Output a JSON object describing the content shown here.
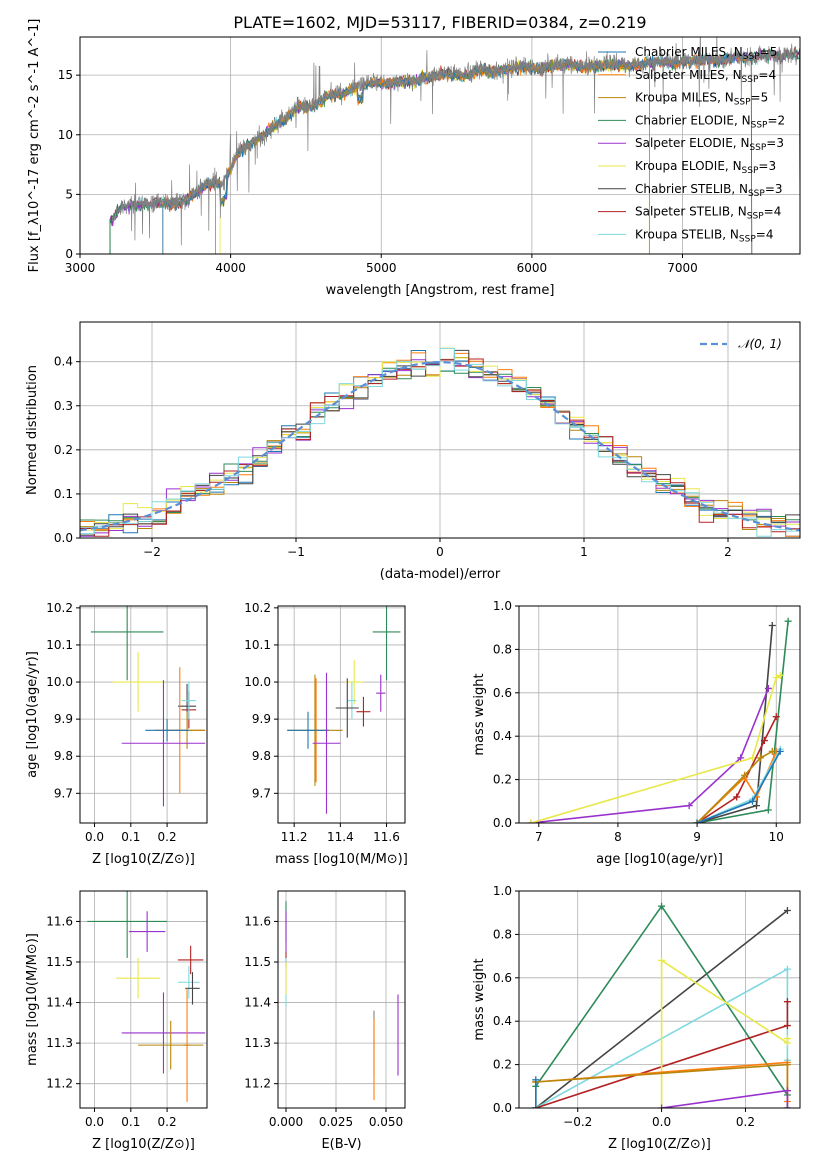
{
  "title": "PLATE=1602, MJD=53117, FIBERID=0384, z=0.219",
  "models": [
    {
      "name": "Chabrier MILES",
      "nssp": "5",
      "color": "#1f77b4"
    },
    {
      "name": "Salpeter MILES",
      "nssp": "4",
      "color": "#ff7f0e"
    },
    {
      "name": "Kroupa MILES",
      "nssp": "5",
      "color": "#b8860b"
    },
    {
      "name": "Chabrier ELODIE",
      "nssp": "2",
      "color": "#2e8b57"
    },
    {
      "name": "Salpeter ELODIE",
      "nssp": "3",
      "color": "#9932cc"
    },
    {
      "name": "Kroupa ELODIE",
      "nssp": "3",
      "color": "#e8e84a"
    },
    {
      "name": "Chabrier STELIB",
      "nssp": "3",
      "color": "#444444"
    },
    {
      "name": "Salpeter STELIB",
      "nssp": "4",
      "color": "#b22222"
    },
    {
      "name": "Kroupa STELIB",
      "nssp": "4",
      "color": "#7fd8e0"
    }
  ],
  "legend_nssp_prefix": "N",
  "legend_nssp_sub": "SSP",
  "chart_data": [
    {
      "id": "spectrum",
      "type": "line",
      "xlabel": "wavelength [Angstrom, rest frame]",
      "ylabel": "Flux [f_λ10^-17 erg cm^-2 s^-1 A^-1]",
      "xlim": [
        3000,
        7780
      ],
      "ylim": [
        0,
        18.2
      ],
      "xticks": [
        3000,
        4000,
        5000,
        6000,
        7000
      ],
      "yticks": [
        0,
        5,
        10,
        15
      ],
      "data_color": "#808080",
      "data": {
        "x": [
          3215,
          3260,
          3350,
          3450,
          3550,
          3650,
          3750,
          3850,
          3950,
          4050,
          4150,
          4250,
          4350,
          4450,
          4550,
          4650,
          4750,
          4850,
          4950,
          5050,
          5150,
          5250,
          5350,
          5450,
          5550,
          5650,
          5750,
          5850,
          5950,
          6050,
          6150,
          6250,
          6350,
          6450,
          6550,
          6650,
          6750,
          6850,
          6950,
          7050,
          7150,
          7250,
          7350,
          7450,
          7550,
          7650,
          7760
        ],
        "y": [
          2.9,
          4.0,
          4.2,
          4.3,
          4.4,
          4.3,
          5.0,
          6.0,
          6.0,
          8.6,
          9.5,
          10.4,
          11.3,
          12.5,
          12.4,
          13.4,
          13.6,
          14.1,
          14.5,
          14.4,
          14.6,
          14.7,
          15.0,
          15.2,
          15.0,
          15.5,
          15.4,
          15.6,
          15.8,
          15.6,
          15.9,
          16.0,
          15.7,
          15.9,
          16.0,
          15.8,
          16.1,
          16.2,
          16.1,
          16.2,
          16.4,
          16.3,
          16.6,
          16.5,
          16.8,
          16.7,
          16.9
        ]
      },
      "model_start": [
        3550,
        3550,
        3900,
        3200,
        3200,
        3930,
        3200,
        3200,
        3200
      ],
      "model_end": [
        7460,
        7460,
        6780,
        7780,
        7780,
        6780,
        7780,
        7780,
        7780
      ]
    },
    {
      "id": "residuals",
      "type": "histogram",
      "xlabel": "(data-model)/error",
      "ylabel": "Normed distribution",
      "xlim": [
        -2.5,
        2.5
      ],
      "ylim": [
        0,
        0.49
      ],
      "xticks": [
        -2,
        -1,
        0,
        1,
        2
      ],
      "yticks": [
        0.0,
        0.1,
        0.2,
        0.3,
        0.4
      ],
      "bin_width": 0.1,
      "bins_start": -2.5,
      "reference": {
        "name": "𝒩(0, 1)",
        "mean": 0,
        "sigma": 1,
        "color": "#5b8fd6"
      }
    },
    {
      "id": "age_vs_Z",
      "type": "errorbar",
      "xlabel": "Z [log10(Z/Z⊙)]",
      "ylabel": "age  [log10(age/yr)]",
      "xlim": [
        -0.04,
        0.31
      ],
      "ylim": [
        9.62,
        10.205
      ],
      "xticks": [
        0.0,
        0.1,
        0.2
      ],
      "yticks": [
        9.7,
        9.8,
        9.9,
        10.0,
        10.1,
        10.2
      ],
      "points": [
        {
          "m": 3,
          "x": 0.09,
          "xe": 0.1,
          "y": 10.135,
          "ye": 0.13
        },
        {
          "m": 5,
          "x": 0.12,
          "xe": 0.07,
          "y": 10.0,
          "ye": 0.08
        },
        {
          "m": 6,
          "x": 0.255,
          "xe": 0.025,
          "y": 9.935,
          "ye": 0.06
        },
        {
          "m": 7,
          "x": 0.26,
          "xe": 0.02,
          "y": 9.925,
          "ye": 0.05
        },
        {
          "m": 8,
          "x": 0.26,
          "xe": 0.02,
          "y": 9.95,
          "ye": 0.05
        },
        {
          "m": 1,
          "x": 0.235,
          "xe": 0.07,
          "y": 9.87,
          "ye": 0.17
        },
        {
          "m": 2,
          "x": 0.255,
          "xe": 0.05,
          "y": 9.87,
          "ye": 0.05
        },
        {
          "m": 0,
          "x": 0.2,
          "xe": 0.06,
          "y": 9.87,
          "ye": 0.03
        },
        {
          "m": 4,
          "x": 0.19,
          "xe": 0.115,
          "y": 9.835,
          "ye": 0.17
        }
      ]
    },
    {
      "id": "age_vs_mass",
      "type": "errorbar",
      "xlabel": "mass [log10(M/M⊙)]",
      "ylabel": "",
      "xlim": [
        11.13,
        11.68
      ],
      "ylim": [
        9.62,
        10.205
      ],
      "xticks": [
        11.2,
        11.4,
        11.6
      ],
      "yticks": [
        9.7,
        9.8,
        9.9,
        10.0,
        10.1,
        10.2
      ],
      "points": [
        {
          "m": 3,
          "x": 11.6,
          "xe": 0.06,
          "y": 10.135,
          "ye": 0.13
        },
        {
          "m": 5,
          "x": 11.46,
          "xe": 0.04,
          "y": 10.0,
          "ye": 0.06
        },
        {
          "m": 4,
          "x": 11.575,
          "xe": 0.02,
          "y": 9.97,
          "ye": 0.05
        },
        {
          "m": 8,
          "x": 11.45,
          "xe": 0.02,
          "y": 9.95,
          "ye": 0.05
        },
        {
          "m": 6,
          "x": 11.43,
          "xe": 0.05,
          "y": 9.93,
          "ye": 0.08
        },
        {
          "m": 7,
          "x": 11.5,
          "xe": 0.03,
          "y": 9.92,
          "ye": 0.04
        },
        {
          "m": 1,
          "x": 11.295,
          "xe": 0.01,
          "y": 9.87,
          "ye": 0.14
        },
        {
          "m": 2,
          "x": 11.29,
          "xe": 0.12,
          "y": 9.87,
          "ye": 0.15
        },
        {
          "m": 0,
          "x": 11.26,
          "xe": 0.09,
          "y": 9.87,
          "ye": 0.05
        },
        {
          "m": 4,
          "x": 11.34,
          "xe": 0.06,
          "y": 9.835,
          "ye": 0.19
        }
      ]
    },
    {
      "id": "weight_vs_age",
      "type": "line",
      "xlabel": "age  [log10(age/yr)]",
      "ylabel": "mass weight",
      "xlim": [
        6.75,
        10.3
      ],
      "ylim": [
        0,
        1.0
      ],
      "xticks": [
        7,
        8,
        9,
        10
      ],
      "yticks": [
        0.0,
        0.2,
        0.4,
        0.6,
        0.8,
        1.0
      ],
      "series": [
        {
          "m": 3,
          "x": [
            9.0,
            9.9,
            10.15
          ],
          "y": [
            0.0,
            0.06,
            0.93
          ]
        },
        {
          "m": 6,
          "x": [
            9.0,
            9.75,
            9.95
          ],
          "y": [
            0.0,
            0.08,
            0.91
          ]
        },
        {
          "m": 4,
          "x": [
            6.9,
            8.9,
            9.55,
            9.9
          ],
          "y": [
            0.0,
            0.08,
            0.3,
            0.62
          ]
        },
        {
          "m": 5,
          "x": [
            6.9,
            9.7,
            10.0,
            10.05
          ],
          "y": [
            0.0,
            0.3,
            0.67,
            0.68
          ]
        },
        {
          "m": 7,
          "x": [
            9.0,
            9.5,
            9.85,
            10.0
          ],
          "y": [
            0.0,
            0.12,
            0.38,
            0.49
          ]
        },
        {
          "m": 1,
          "x": [
            9.0,
            9.6,
            9.75,
            10.0
          ],
          "y": [
            0.0,
            0.21,
            0.12,
            0.33
          ]
        },
        {
          "m": 2,
          "x": [
            9.0,
            9.6,
            9.8,
            9.95
          ],
          "y": [
            0.0,
            0.22,
            0.3,
            0.33
          ]
        },
        {
          "m": 8,
          "x": [
            9.0,
            9.7,
            10.05
          ],
          "y": [
            0.0,
            0.11,
            0.34
          ]
        },
        {
          "m": 0,
          "x": [
            9.0,
            9.7,
            10.05
          ],
          "y": [
            0.0,
            0.1,
            0.33
          ]
        }
      ]
    },
    {
      "id": "mass_vs_Z",
      "type": "errorbar",
      "xlabel": "Z [log10(Z/Z⊙)]",
      "ylabel": "mass [log10(M/M⊙)]",
      "xlim": [
        -0.04,
        0.31
      ],
      "ylim": [
        11.14,
        11.675
      ],
      "xticks": [
        0.0,
        0.1,
        0.2
      ],
      "yticks": [
        11.2,
        11.3,
        11.4,
        11.5,
        11.6
      ],
      "points": [
        {
          "m": 3,
          "x": 0.09,
          "xe": 0.11,
          "y": 11.6,
          "ye": 0.09
        },
        {
          "m": 4,
          "x": 0.145,
          "xe": 0.05,
          "y": 11.575,
          "ye": 0.05
        },
        {
          "m": 7,
          "x": 0.265,
          "xe": 0.035,
          "y": 11.505,
          "ye": 0.035
        },
        {
          "m": 5,
          "x": 0.12,
          "xe": 0.06,
          "y": 11.46,
          "ye": 0.05
        },
        {
          "m": 8,
          "x": 0.26,
          "xe": 0.03,
          "y": 11.45,
          "ye": 0.04
        },
        {
          "m": 6,
          "x": 0.27,
          "xe": 0.02,
          "y": 11.435,
          "ye": 0.04
        },
        {
          "m": 4,
          "x": 0.19,
          "xe": 0.115,
          "y": 11.325,
          "ye": 0.1
        },
        {
          "m": 1,
          "x": 0.255,
          "xe": 0.01,
          "y": 11.295,
          "ye": 0.14
        },
        {
          "m": 2,
          "x": 0.21,
          "xe": 0.09,
          "y": 11.295,
          "ye": 0.06
        }
      ]
    },
    {
      "id": "mass_vs_ebv",
      "type": "errorbar",
      "xlabel": "E(B-V)",
      "ylabel": "",
      "xlim": [
        -0.004,
        0.0595
      ],
      "ylim": [
        11.14,
        11.675
      ],
      "xticks": [
        0.0,
        0.025,
        0.05
      ],
      "ytick_labels_decimals": 1,
      "yticks": [
        11.2,
        11.3,
        11.4,
        11.5,
        11.6
      ],
      "points": [
        {
          "m": 3,
          "x": 0.0,
          "xe": 0.0,
          "y": 11.6,
          "ye": 0.05
        },
        {
          "m": 4,
          "x": 0.0,
          "xe": 0.0,
          "y": 11.575,
          "ye": 0.05
        },
        {
          "m": 7,
          "x": 0.0,
          "xe": 0.0,
          "y": 11.505,
          "ye": 0.02
        },
        {
          "m": 8,
          "x": 0.0,
          "xe": 0.0,
          "y": 11.45,
          "ye": 0.06
        },
        {
          "m": 5,
          "x": 0.0,
          "xe": 0.0,
          "y": 11.46,
          "ye": 0.04
        },
        {
          "m": 9,
          "x": 0.044,
          "xe": 0.0,
          "y": 11.3,
          "ye": 0.08
        },
        {
          "m": 1,
          "x": 0.044,
          "xe": 0.0,
          "y": 11.26,
          "ye": 0.1
        },
        {
          "m": 4,
          "x": 0.056,
          "xe": 0.0,
          "y": 11.32,
          "ye": 0.1
        }
      ]
    },
    {
      "id": "weight_vs_Z",
      "type": "line",
      "xlabel": "Z [log10(Z/Z⊙)]",
      "ylabel": "mass weight",
      "xlim": [
        -0.34,
        0.33
      ],
      "ylim": [
        0,
        1.0
      ],
      "xticks": [
        -0.2,
        0.0,
        0.2
      ],
      "yticks": [
        0.0,
        0.2,
        0.4,
        0.6,
        0.8,
        1.0
      ],
      "series": [
        {
          "m": 6,
          "x": [
            -0.3,
            0.3
          ],
          "y": [
            0.0,
            0.91
          ]
        },
        {
          "m": 3,
          "x": [
            -0.3,
            -0.3,
            0.0,
            0.3,
            0.3
          ],
          "y": [
            0.0,
            0.1,
            0.93,
            0.06,
            0.0
          ]
        },
        {
          "m": 8,
          "x": [
            -0.3,
            0.3,
            0.3
          ],
          "y": [
            0.0,
            0.64,
            0.22
          ]
        },
        {
          "m": 7,
          "x": [
            -0.3,
            0.3,
            0.3
          ],
          "y": [
            0.0,
            0.38,
            0.49
          ]
        },
        {
          "m": 5,
          "x": [
            0.0,
            0.0,
            0.3,
            0.3
          ],
          "y": [
            0.0,
            0.68,
            0.3,
            0.32
          ]
        },
        {
          "m": 1,
          "x": [
            -0.3,
            0.3,
            0.3
          ],
          "y": [
            0.12,
            0.21,
            0.03
          ]
        },
        {
          "m": 2,
          "x": [
            -0.3,
            0.3,
            0.3
          ],
          "y": [
            0.12,
            0.2,
            0.08
          ]
        },
        {
          "m": 4,
          "x": [
            0.0,
            0.3,
            0.3
          ],
          "y": [
            0.0,
            0.08,
            0.0
          ]
        },
        {
          "m": 0,
          "x": [
            -0.3,
            -0.3
          ],
          "y": [
            0.0,
            0.13
          ]
        }
      ]
    }
  ]
}
